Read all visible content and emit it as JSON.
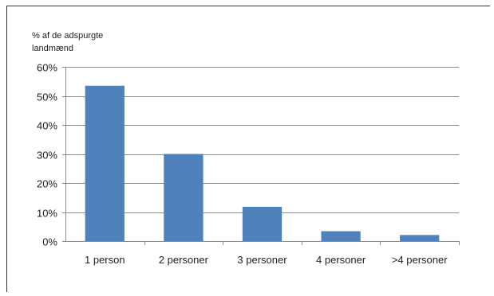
{
  "chart_data": {
    "type": "bar",
    "ylabel": "% af de adspurgte landmænd",
    "ylabel_lines": [
      "% af de adspurgte",
      "landmænd"
    ],
    "xlabel": "",
    "categories": [
      "1 person",
      "2 personer",
      "3 personer",
      "4 personer",
      ">4 personer"
    ],
    "values": [
      53.5,
      30,
      11.8,
      3.4,
      2.1
    ],
    "ylim": [
      0,
      60
    ],
    "yticks": [
      0,
      10,
      20,
      30,
      40,
      50,
      60
    ],
    "ytick_labels": [
      "0%",
      "10%",
      "20%",
      "30%",
      "40%",
      "50%",
      "60%"
    ],
    "bar_color": "#4f81bd",
    "grid": true,
    "legend": "none"
  }
}
